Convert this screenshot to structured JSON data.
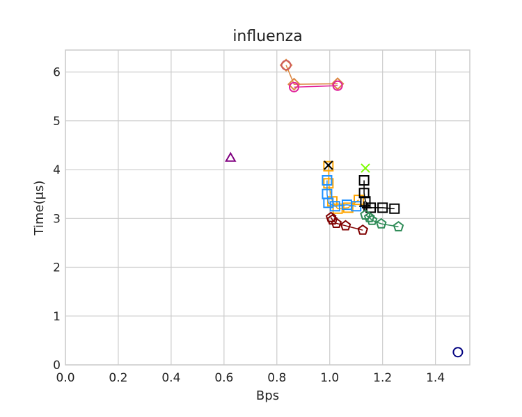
{
  "chart_data": {
    "type": "scatter",
    "title": "influenza",
    "xlabel": "Bps",
    "ylabel": "Time(μs)",
    "xlim": [
      0.0,
      1.53
    ],
    "ylim": [
      0,
      6.45
    ],
    "xticks": [
      0.0,
      0.2,
      0.4,
      0.6,
      0.8,
      1.0,
      1.2,
      1.4
    ],
    "yticks": [
      0,
      1,
      2,
      3,
      4,
      5,
      6
    ],
    "xtick_labels": [
      "0.0",
      "0.2",
      "0.4",
      "0.6",
      "0.8",
      "1.0",
      "1.2",
      "1.4"
    ],
    "ytick_labels": [
      "0",
      "1",
      "2",
      "3",
      "4",
      "5",
      "6"
    ],
    "grid": true,
    "legend": "none",
    "series": [
      {
        "color": "#dd8844",
        "marker": "diamond",
        "line": true,
        "points": [
          [
            0.835,
            6.14
          ],
          [
            0.865,
            5.75
          ],
          [
            1.03,
            5.76
          ]
        ]
      },
      {
        "color": "#e0209a",
        "marker": "circle",
        "line": true,
        "points": [
          [
            0.865,
            5.69
          ],
          [
            1.03,
            5.72
          ]
        ]
      },
      {
        "color": "#cd5c5c",
        "marker": "circle",
        "line": false,
        "points": [
          [
            0.835,
            6.14
          ]
        ]
      },
      {
        "color": "#800080",
        "marker": "triangle",
        "line": false,
        "points": [
          [
            0.625,
            4.25
          ]
        ]
      },
      {
        "color": "#ffa500",
        "marker": "square",
        "line": true,
        "points": [
          [
            0.995,
            4.07
          ],
          [
            0.995,
            3.72
          ],
          [
            1.01,
            3.35
          ],
          [
            1.03,
            3.2
          ],
          [
            1.07,
            3.22
          ],
          [
            1.11,
            3.38
          ]
        ]
      },
      {
        "color": "#1e90ff",
        "marker": "square",
        "line": true,
        "points": [
          [
            0.99,
            3.78
          ],
          [
            0.99,
            3.5
          ],
          [
            0.995,
            3.32
          ],
          [
            1.02,
            3.25
          ],
          [
            1.065,
            3.28
          ],
          [
            1.1,
            3.25
          ]
        ]
      },
      {
        "color": "#000000",
        "marker": "x",
        "line": false,
        "points": [
          [
            0.995,
            4.09
          ]
        ]
      },
      {
        "color": "#000000",
        "marker": "square",
        "line": true,
        "points": [
          [
            1.13,
            3.78
          ],
          [
            1.13,
            3.52
          ],
          [
            1.135,
            3.35
          ],
          [
            1.155,
            3.22
          ],
          [
            1.2,
            3.22
          ],
          [
            1.245,
            3.2
          ]
        ]
      },
      {
        "color": "#000000",
        "marker": "plus",
        "line": false,
        "points": [
          [
            1.13,
            3.25
          ],
          [
            1.14,
            3.22
          ]
        ]
      },
      {
        "color": "#7cfc00",
        "marker": "x",
        "line": false,
        "points": [
          [
            1.135,
            4.03
          ]
        ]
      },
      {
        "color": "#800000",
        "marker": "pentagon",
        "line": true,
        "points": [
          [
            1.005,
            3.02
          ],
          [
            1.01,
            2.97
          ],
          [
            1.025,
            2.9
          ],
          [
            1.06,
            2.85
          ],
          [
            1.125,
            2.76
          ]
        ]
      },
      {
        "color": "#2e8b57",
        "marker": "pentagon",
        "line": true,
        "points": [
          [
            1.135,
            3.07
          ],
          [
            1.15,
            3.02
          ],
          [
            1.16,
            2.96
          ],
          [
            1.195,
            2.89
          ],
          [
            1.26,
            2.83
          ]
        ]
      },
      {
        "color": "#000080",
        "marker": "circle",
        "line": false,
        "points": [
          [
            1.485,
            0.26
          ]
        ]
      }
    ]
  }
}
